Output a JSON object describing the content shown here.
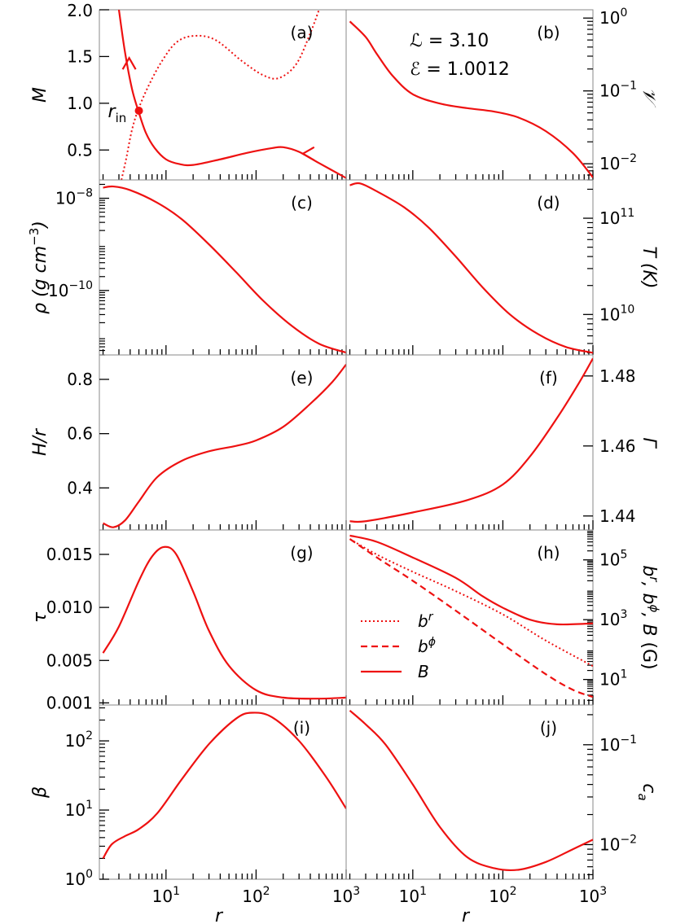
{
  "figure": {
    "x_axis_label": "r",
    "x_ticks": [
      {
        "value": 10,
        "base": "10",
        "exp": "1"
      },
      {
        "value": 100,
        "base": "10",
        "exp": "2"
      },
      {
        "value": 1000,
        "base": "10",
        "exp": "3"
      }
    ],
    "annotation": {
      "L": "ℒ = 3.10",
      "E": "ℰ = 1.0012"
    },
    "line_color": "#ee1111"
  },
  "chart_data": [
    {
      "panel": "(a)",
      "type": "line",
      "ylabel": "M",
      "yscale": "linear",
      "ylim": [
        0.18,
        2.0
      ],
      "ylabel_side": "left",
      "yticks": [
        {
          "value": 0.5,
          "label": "0.5"
        },
        {
          "value": 1.0,
          "label": "1.0"
        },
        {
          "value": 1.5,
          "label": "1.5"
        },
        {
          "value": 2.0,
          "label": "2.0"
        }
      ],
      "series": [
        {
          "style": "solid",
          "points": [
            [
              3.0,
              2.0
            ],
            [
              3.5,
              1.55
            ],
            [
              4.2,
              1.15
            ],
            [
              5.0,
              0.9
            ],
            [
              6.0,
              0.68
            ],
            [
              7.5,
              0.52
            ],
            [
              10,
              0.4
            ],
            [
              14,
              0.35
            ],
            [
              20,
              0.34
            ],
            [
              40,
              0.4
            ],
            [
              80,
              0.47
            ],
            [
              150,
              0.52
            ],
            [
              200,
              0.53
            ],
            [
              300,
              0.48
            ],
            [
              500,
              0.36
            ],
            [
              1000,
              0.2
            ]
          ]
        },
        {
          "style": "dotted",
          "points": [
            [
              3.2,
              0.18
            ],
            [
              3.6,
              0.4
            ],
            [
              4.2,
              0.72
            ],
            [
              5.0,
              0.95
            ],
            [
              6.5,
              1.2
            ],
            [
              9,
              1.45
            ],
            [
              13,
              1.65
            ],
            [
              20,
              1.72
            ],
            [
              35,
              1.68
            ],
            [
              70,
              1.45
            ],
            [
              120,
              1.3
            ],
            [
              180,
              1.27
            ],
            [
              280,
              1.42
            ],
            [
              400,
              1.75
            ],
            [
              500,
              2.0
            ]
          ]
        }
      ],
      "critical_point": {
        "label": "r",
        "subscript": "in",
        "r": 5.0,
        "M": 0.92
      },
      "arrows": [
        {
          "r": 3.9,
          "M": 1.45,
          "direction": "up"
        },
        {
          "r": 330,
          "M": 0.46,
          "direction": "left"
        }
      ]
    },
    {
      "panel": "(b)",
      "type": "line",
      "ylabel": "𝒱",
      "yscale": "log",
      "ylim": [
        0.006,
        1.3
      ],
      "ylabel_side": "right",
      "yticks": [
        {
          "value": 0.01,
          "base": "10",
          "exp": "−2"
        },
        {
          "value": 0.1,
          "base": "10",
          "exp": "−1"
        },
        {
          "value": 1,
          "base": "10",
          "exp": "0"
        }
      ],
      "series": [
        {
          "style": "solid",
          "points": [
            [
              2.0,
              0.9
            ],
            [
              3.0,
              0.55
            ],
            [
              4.0,
              0.32
            ],
            [
              6.0,
              0.16
            ],
            [
              10,
              0.09
            ],
            [
              20,
              0.067
            ],
            [
              40,
              0.058
            ],
            [
              80,
              0.052
            ],
            [
              150,
              0.043
            ],
            [
              300,
              0.028
            ],
            [
              600,
              0.014
            ],
            [
              1000,
              0.0065
            ]
          ]
        }
      ]
    },
    {
      "panel": "(c)",
      "type": "line",
      "ylabel": "ρ (g cm",
      "ylabel_exp": "−3",
      "ylabel_end": ")",
      "yscale": "log",
      "ylim": [
        4e-12,
        2.5e-08
      ],
      "ylabel_side": "left",
      "yticks": [
        {
          "value": 1e-10,
          "base": "10",
          "exp": "−10"
        },
        {
          "value": 1e-08,
          "base": "10",
          "exp": "−8"
        }
      ],
      "series": [
        {
          "style": "solid",
          "points": [
            [
              2.0,
              1.7e-08
            ],
            [
              2.6,
              1.8e-08
            ],
            [
              4.0,
              1.5e-08
            ],
            [
              8,
              8e-09
            ],
            [
              15,
              3.5e-09
            ],
            [
              30,
              1e-09
            ],
            [
              60,
              2.5e-10
            ],
            [
              120,
              6e-11
            ],
            [
              250,
              1.7e-11
            ],
            [
              500,
              7e-12
            ],
            [
              1000,
              4.5e-12
            ]
          ]
        }
      ]
    },
    {
      "panel": "(d)",
      "type": "line",
      "ylabel": "T (K)",
      "yscale": "log",
      "ylim": [
        3800000000.0,
        250000000000.0
      ],
      "ylabel_side": "right",
      "yticks": [
        {
          "value": 10000000000.0,
          "base": "10",
          "exp": "10"
        },
        {
          "value": 100000000000.0,
          "base": "10",
          "exp": "11"
        }
      ],
      "series": [
        {
          "style": "solid",
          "points": [
            [
              2.0,
              220000000000.0
            ],
            [
              2.6,
              230000000000.0
            ],
            [
              4.0,
              190000000000.0
            ],
            [
              8,
              130000000000.0
            ],
            [
              15,
              80000000000.0
            ],
            [
              30,
              40000000000.0
            ],
            [
              60,
              19000000000.0
            ],
            [
              120,
              10000000000.0
            ],
            [
              250,
              6200000000.0
            ],
            [
              500,
              4600000000.0
            ],
            [
              1000,
              4000000000.0
            ]
          ]
        }
      ]
    },
    {
      "panel": "(e)",
      "type": "line",
      "ylabel": "H/r",
      "yscale": "linear",
      "ylim": [
        0.245,
        0.89
      ],
      "ylabel_side": "left",
      "yticks": [
        {
          "value": 0.4,
          "label": "0.4"
        },
        {
          "value": 0.6,
          "label": "0.6"
        },
        {
          "value": 0.8,
          "label": "0.8"
        }
      ],
      "series": [
        {
          "style": "solid",
          "points": [
            [
              2.0,
              0.27
            ],
            [
              2.6,
              0.255
            ],
            [
              3.5,
              0.28
            ],
            [
              5.0,
              0.35
            ],
            [
              8,
              0.44
            ],
            [
              15,
              0.5
            ],
            [
              30,
              0.535
            ],
            [
              60,
              0.555
            ],
            [
              100,
              0.575
            ],
            [
              200,
              0.625
            ],
            [
              400,
              0.71
            ],
            [
              700,
              0.79
            ],
            [
              1000,
              0.855
            ]
          ]
        }
      ]
    },
    {
      "panel": "(f)",
      "type": "line",
      "ylabel": "Γ",
      "yscale": "linear",
      "ylim": [
        1.436,
        1.486
      ],
      "ylabel_side": "right",
      "yticks": [
        {
          "value": 1.44,
          "label": "1.44"
        },
        {
          "value": 1.46,
          "label": "1.46"
        },
        {
          "value": 1.48,
          "label": "1.48"
        }
      ],
      "series": [
        {
          "style": "solid",
          "points": [
            [
              2.0,
              1.4385
            ],
            [
              3.0,
              1.4385
            ],
            [
              10,
              1.441
            ],
            [
              40,
              1.4445
            ],
            [
              100,
              1.449
            ],
            [
              200,
              1.457
            ],
            [
              400,
              1.468
            ],
            [
              700,
              1.478
            ],
            [
              1000,
              1.485
            ]
          ]
        }
      ]
    },
    {
      "panel": "(g)",
      "type": "line",
      "ylabel": "τ",
      "yscale": "linear",
      "ylim": [
        0.0008,
        0.0173
      ],
      "ylabel_side": "left",
      "yticks": [
        {
          "value": 0.001,
          "label": "0.001"
        },
        {
          "value": 0.005,
          "label": "0.005"
        },
        {
          "value": 0.01,
          "label": "0.010"
        },
        {
          "value": 0.015,
          "label": "0.015"
        }
      ],
      "series": [
        {
          "style": "solid",
          "points": [
            [
              2.0,
              0.0057
            ],
            [
              3.0,
              0.0082
            ],
            [
              5.0,
              0.0125
            ],
            [
              7.0,
              0.0148
            ],
            [
              9.5,
              0.0157
            ],
            [
              13,
              0.015
            ],
            [
              20,
              0.0115
            ],
            [
              30,
              0.0078
            ],
            [
              50,
              0.0045
            ],
            [
              100,
              0.0022
            ],
            [
              200,
              0.0015
            ],
            [
              500,
              0.0014
            ],
            [
              1000,
              0.0015
            ]
          ]
        }
      ]
    },
    {
      "panel": "(h)",
      "type": "line",
      "ylabel": "b",
      "yscale": "log",
      "ylim": [
        1.4,
        1000000.0
      ],
      "ylabel_side": "right",
      "yticks": [
        {
          "value": 10,
          "base": "10",
          "exp": "1"
        },
        {
          "value": 1000,
          "base": "10",
          "exp": "3"
        },
        {
          "value": 100000,
          "base": "10",
          "exp": "5"
        }
      ],
      "legend": {
        "placement": "lower-left",
        "items": [
          {
            "style": "dotted",
            "label": "b",
            "sup": "r"
          },
          {
            "style": "dashed",
            "label": "b",
            "sup": "ϕ"
          },
          {
            "style": "solid",
            "label": "B",
            "sup": ""
          }
        ]
      },
      "series": [
        {
          "style": "dotted",
          "points": [
            [
              2.0,
              500000.0
            ],
            [
              4,
              150000.0
            ],
            [
              10,
              40000.0
            ],
            [
              30,
              9000
            ],
            [
              100,
              1500
            ],
            [
              300,
              200
            ],
            [
              1000,
              28
            ]
          ]
        },
        {
          "style": "dashed",
          "points": [
            [
              2.0,
              500000.0
            ],
            [
              4,
              120000.0
            ],
            [
              10,
              20000.0
            ],
            [
              30,
              2000
            ],
            [
              100,
              150
            ],
            [
              300,
              15
            ],
            [
              600,
              4.5
            ],
            [
              1000,
              2.6
            ]
          ]
        },
        {
          "style": "solid",
          "points": [
            [
              2.0,
              650000.0
            ],
            [
              4,
              400000.0
            ],
            [
              10,
              120000.0
            ],
            [
              30,
              25000.0
            ],
            [
              60,
              6000
            ],
            [
              100,
              2500
            ],
            [
              200,
              1000
            ],
            [
              400,
              700
            ],
            [
              1000,
              750
            ]
          ]
        }
      ]
    },
    {
      "panel": "(i)",
      "type": "line",
      "ylabel": "β",
      "yscale": "log",
      "ylim": [
        1,
        330
      ],
      "ylabel_side": "left",
      "yticks": [
        {
          "value": 1,
          "base": "10",
          "exp": "0"
        },
        {
          "value": 10,
          "base": "10",
          "exp": "1"
        },
        {
          "value": 100,
          "base": "10",
          "exp": "2"
        }
      ],
      "series": [
        {
          "style": "solid",
          "points": [
            [
              2.0,
              2.0
            ],
            [
              2.5,
              3.2
            ],
            [
              3.5,
              4.2
            ],
            [
              5.0,
              5.3
            ],
            [
              8,
              9
            ],
            [
              15,
              28
            ],
            [
              30,
              90
            ],
            [
              60,
              210
            ],
            [
              90,
              255
            ],
            [
              150,
              220
            ],
            [
              300,
              100
            ],
            [
              600,
              30
            ],
            [
              1000,
              10.5
            ]
          ]
        }
      ]
    },
    {
      "panel": "(j)",
      "type": "line",
      "ylabel": "c",
      "ylabel_sub": "a",
      "yscale": "log",
      "ylim": [
        0.0045,
        0.25
      ],
      "ylabel_side": "right",
      "yticks": [
        {
          "value": 0.01,
          "base": "10",
          "exp": "−2"
        },
        {
          "value": 0.1,
          "base": "10",
          "exp": "−1"
        }
      ],
      "series": [
        {
          "style": "solid",
          "points": [
            [
              2.0,
              0.22
            ],
            [
              3.0,
              0.16
            ],
            [
              5.0,
              0.1
            ],
            [
              10,
              0.04
            ],
            [
              20,
              0.015
            ],
            [
              40,
              0.0075
            ],
            [
              80,
              0.0058
            ],
            [
              150,
              0.0056
            ],
            [
              300,
              0.0067
            ],
            [
              600,
              0.009
            ],
            [
              1000,
              0.0112
            ]
          ]
        }
      ]
    }
  ]
}
